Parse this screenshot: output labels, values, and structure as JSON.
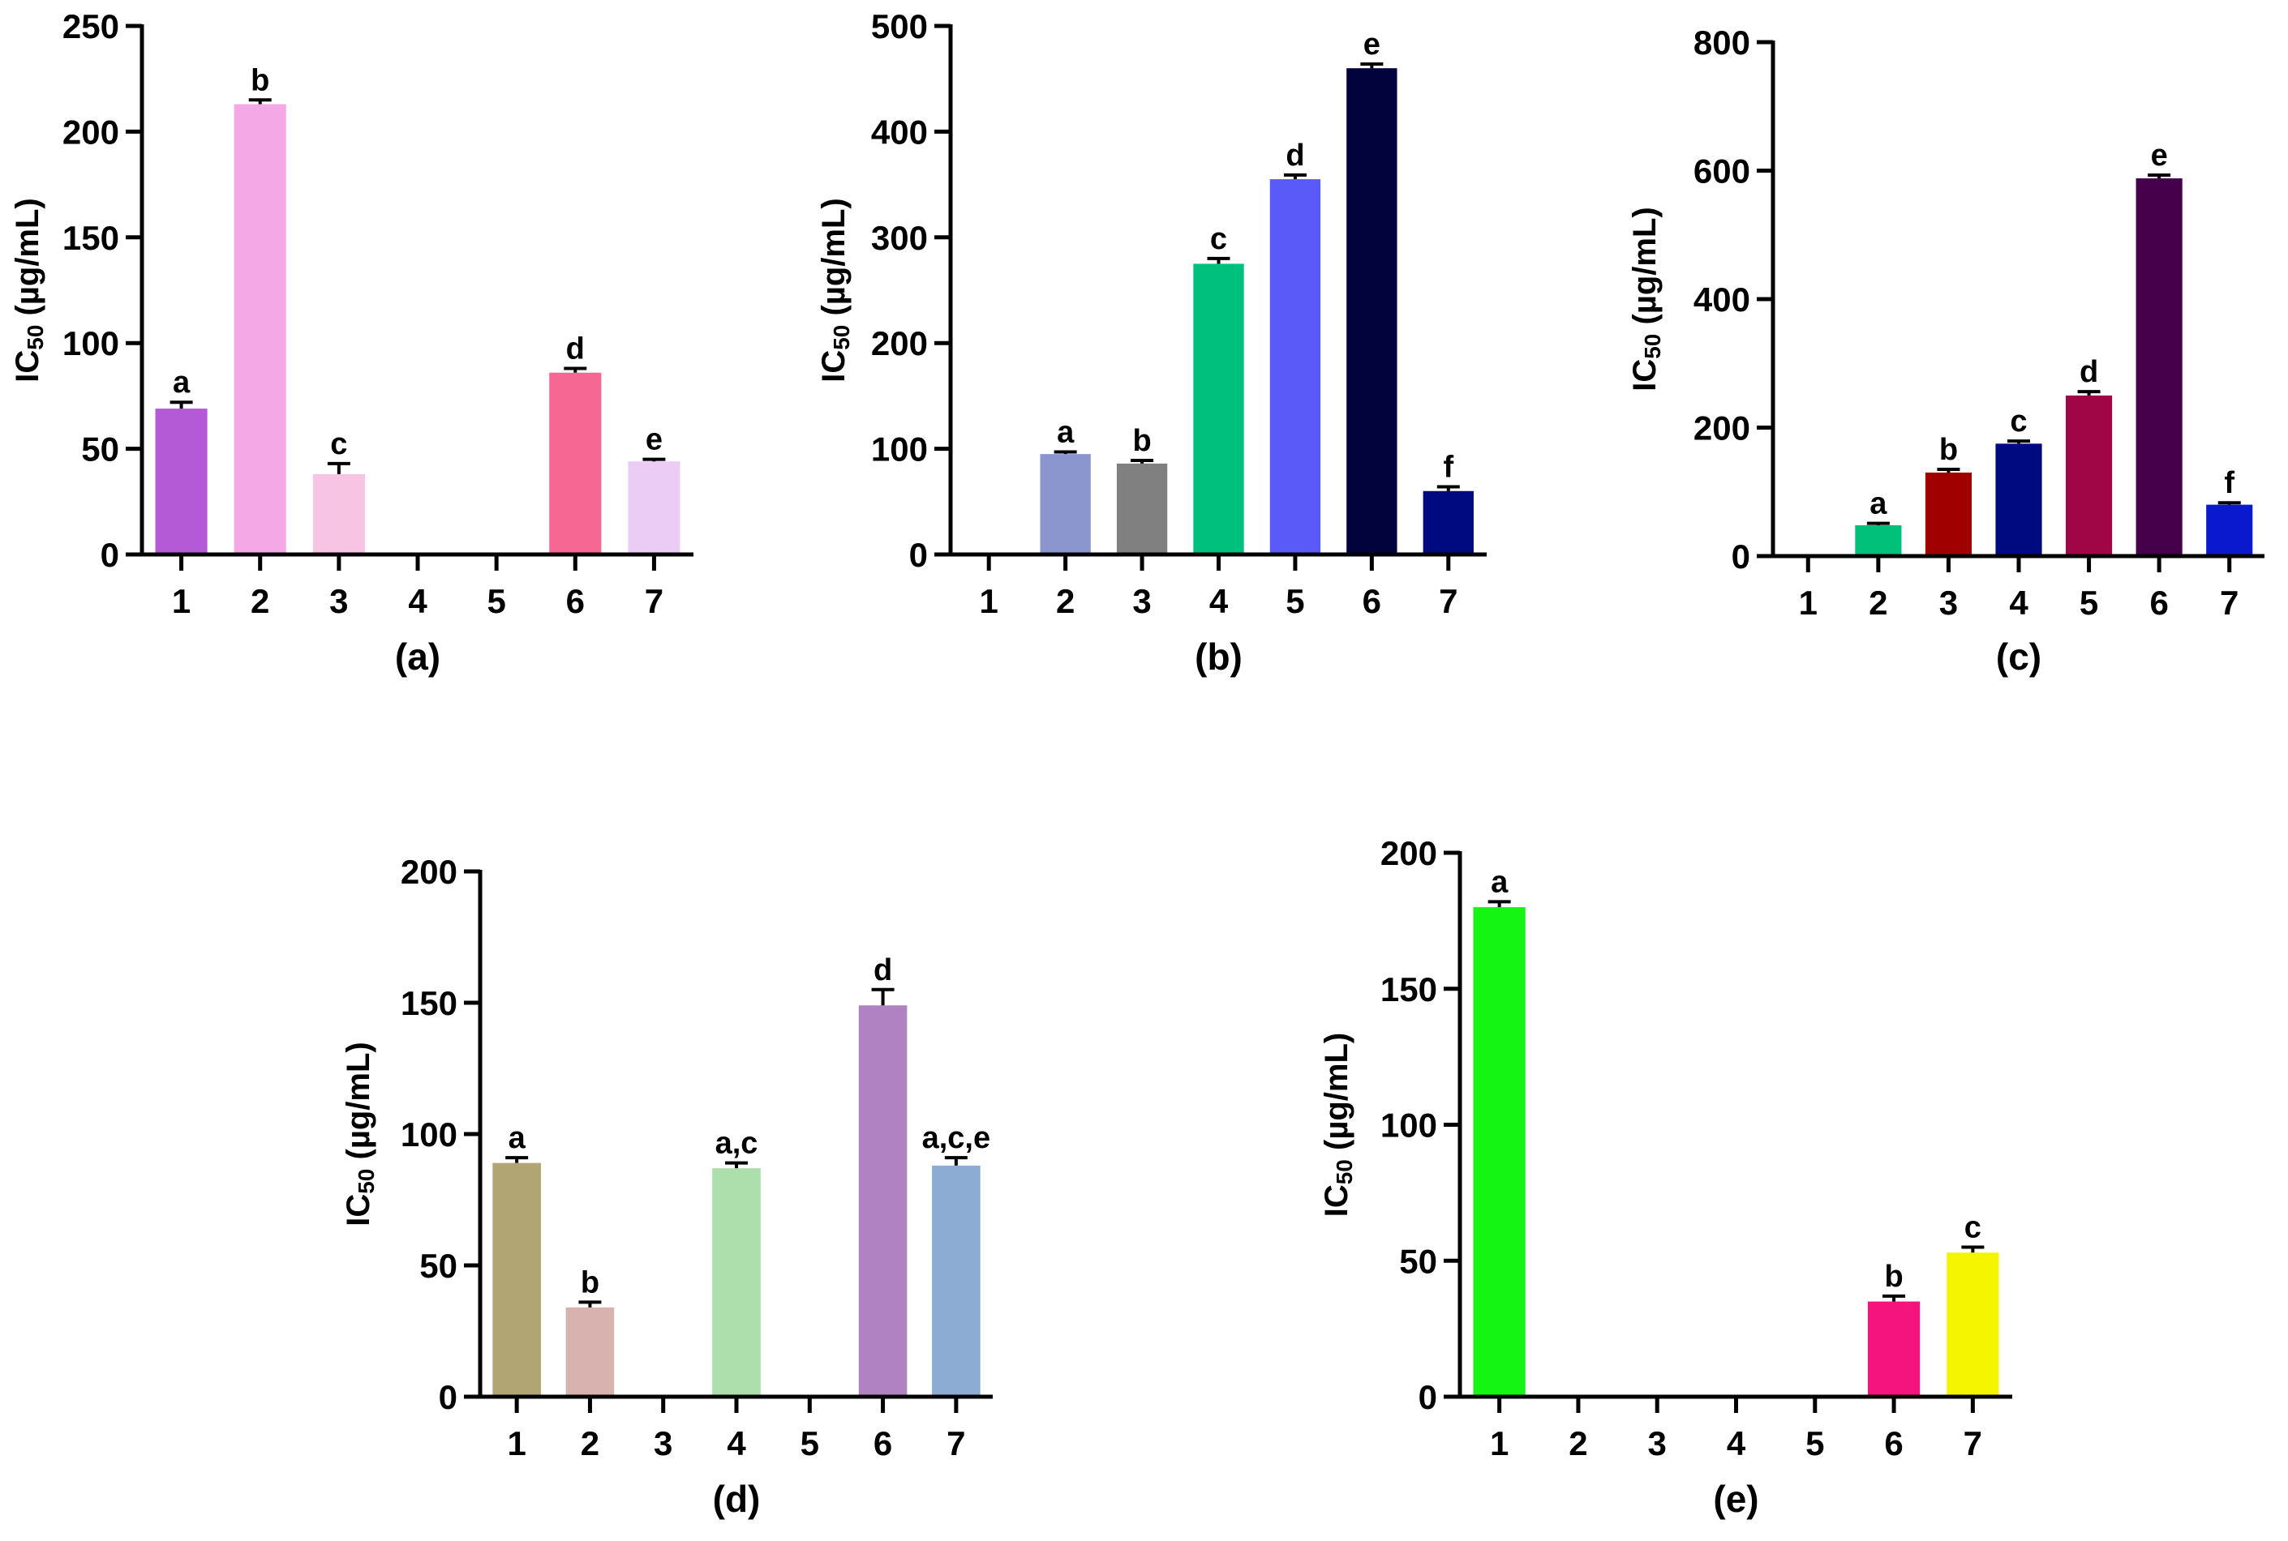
{
  "chart_data": [
    {
      "type": "bar",
      "panel_label": "(a)",
      "categories": [
        "1",
        "2",
        "3",
        "4",
        "5",
        "6",
        "7"
      ],
      "values": [
        69,
        213,
        38,
        null,
        null,
        86,
        44
      ],
      "errors": [
        3,
        2,
        5,
        null,
        null,
        2,
        1
      ],
      "letters": [
        "a",
        "b",
        "c",
        "",
        "",
        "d",
        "e"
      ],
      "colors": [
        "#B55AD6",
        "#F5A8E6",
        "#F8C4E4",
        "",
        "",
        "#F76794",
        "#EBCCF5"
      ],
      "ylabel_main": "IC",
      "ylabel_sub": "50",
      "ylabel_unit": " (µg/mL)",
      "ylim": [
        0,
        250
      ],
      "yticks": [
        "0",
        "50",
        "100",
        "150",
        "200",
        "250"
      ]
    },
    {
      "type": "bar",
      "panel_label": "(b)",
      "categories": [
        "1",
        "2",
        "3",
        "4",
        "5",
        "6",
        "7"
      ],
      "values": [
        null,
        95,
        86,
        275,
        355,
        460,
        60
      ],
      "errors": [
        null,
        2,
        3,
        5,
        4,
        4,
        4
      ],
      "letters": [
        "",
        "a",
        "b",
        "c",
        "d",
        "e",
        "f"
      ],
      "colors": [
        "",
        "#8C96CE",
        "#808080",
        "#00C07D",
        "#5A5AF8",
        "#02023C",
        "#000A80"
      ],
      "ylabel_main": "IC",
      "ylabel_sub": "50",
      "ylabel_unit": " (µg/mL)",
      "ylim": [
        0,
        500
      ],
      "yticks": [
        "0",
        "100",
        "200",
        "300",
        "400",
        "500"
      ]
    },
    {
      "type": "bar",
      "panel_label": "(c)",
      "categories": [
        "1",
        "2",
        "3",
        "4",
        "5",
        "6",
        "7"
      ],
      "values": [
        null,
        48,
        130,
        175,
        250,
        588,
        80
      ],
      "errors": [
        null,
        3,
        5,
        4,
        6,
        5,
        3
      ],
      "letters": [
        "",
        "a",
        "b",
        "c",
        "d",
        "e",
        "f"
      ],
      "colors": [
        "",
        "#00C07A",
        "#A00000",
        "#000A80",
        "#A00546",
        "#46004B",
        "#0A19CD"
      ],
      "ylabel_main": "IC",
      "ylabel_sub": "50",
      "ylabel_unit": " (µg/mL)",
      "ylim": [
        0,
        800
      ],
      "yticks": [
        "0",
        "200",
        "400",
        "600",
        "800"
      ]
    },
    {
      "type": "bar",
      "panel_label": "(d)",
      "categories": [
        "1",
        "2",
        "3",
        "4",
        "5",
        "6",
        "7"
      ],
      "values": [
        89,
        34,
        null,
        87,
        null,
        149,
        88
      ],
      "errors": [
        2,
        2,
        null,
        2,
        null,
        6,
        3
      ],
      "letters": [
        "a",
        "b",
        "",
        "a,c",
        "",
        "d",
        "a,c,e"
      ],
      "colors": [
        "#B0A573",
        "#D8B2AE",
        "",
        "#ADDFAD",
        "",
        "#B082C1",
        "#8CACD3"
      ],
      "ylabel_main": "IC",
      "ylabel_sub": "50",
      "ylabel_unit": " (µg/mL)",
      "ylim": [
        0,
        200
      ],
      "yticks": [
        "0",
        "50",
        "100",
        "150",
        "200"
      ]
    },
    {
      "type": "bar",
      "panel_label": "(e)",
      "categories": [
        "1",
        "2",
        "3",
        "4",
        "5",
        "6",
        "7"
      ],
      "values": [
        180,
        null,
        null,
        null,
        null,
        35,
        53
      ],
      "errors": [
        2,
        null,
        null,
        null,
        null,
        2,
        2
      ],
      "letters": [
        "a",
        "",
        "",
        "",
        "",
        "b",
        "c"
      ],
      "colors": [
        "#14F514",
        "",
        "",
        "",
        "",
        "#F5147D",
        "#F5F500"
      ],
      "ylabel_main": "IC",
      "ylabel_sub": "50",
      "ylabel_unit": " (µg/mL)",
      "ylim": [
        0,
        200
      ],
      "yticks": [
        "0",
        "50",
        "100",
        "150",
        "200"
      ]
    }
  ]
}
